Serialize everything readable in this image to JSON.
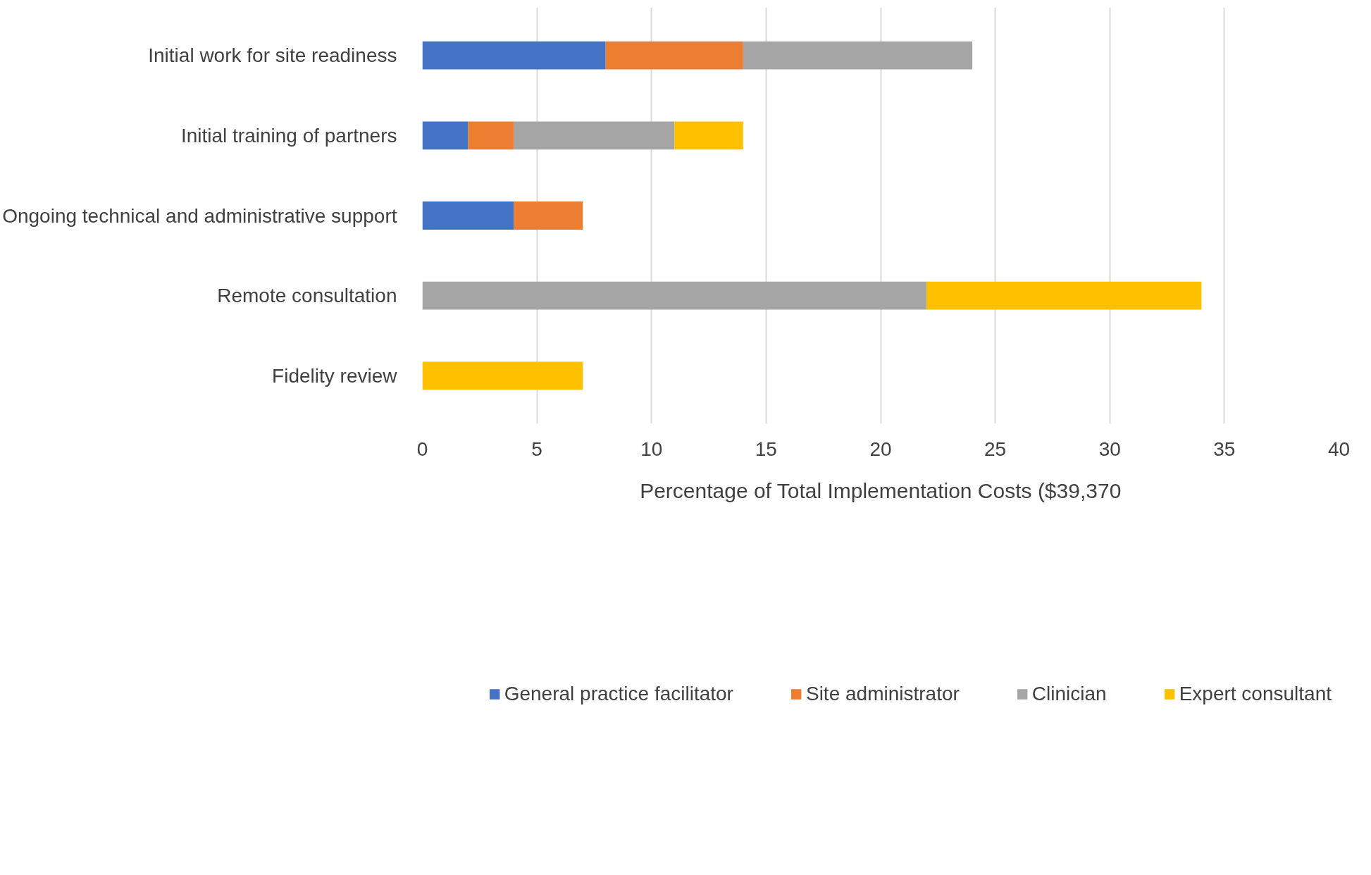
{
  "chart_data": {
    "type": "bar",
    "orientation": "horizontal",
    "stacked": true,
    "categories": [
      "Initial work for site readiness",
      "Initial training of partners",
      "Ongoing technical and administrative support",
      "Remote consultation",
      "Fidelity review"
    ],
    "series": [
      {
        "name": "General practice facilitator",
        "color": "#4472c4",
        "values": [
          8,
          2,
          4,
          null,
          null
        ]
      },
      {
        "name": "Site administrator",
        "color": "#ed7d31",
        "values": [
          6,
          2,
          3,
          null,
          null
        ]
      },
      {
        "name": "Clinician",
        "color": "#a5a5a5",
        "values": [
          10,
          7,
          null,
          22,
          null
        ]
      },
      {
        "name": "Expert consultant",
        "color": "#ffc000",
        "values": [
          null,
          3,
          null,
          12,
          7
        ]
      }
    ],
    "xlim": [
      0,
      40
    ],
    "xticks": [
      0,
      5,
      10,
      15,
      20,
      25,
      30,
      35,
      40
    ],
    "xlabel": "Percentage of Total Implementation Costs ($39,370",
    "grid": "x",
    "legend": "bottom"
  }
}
